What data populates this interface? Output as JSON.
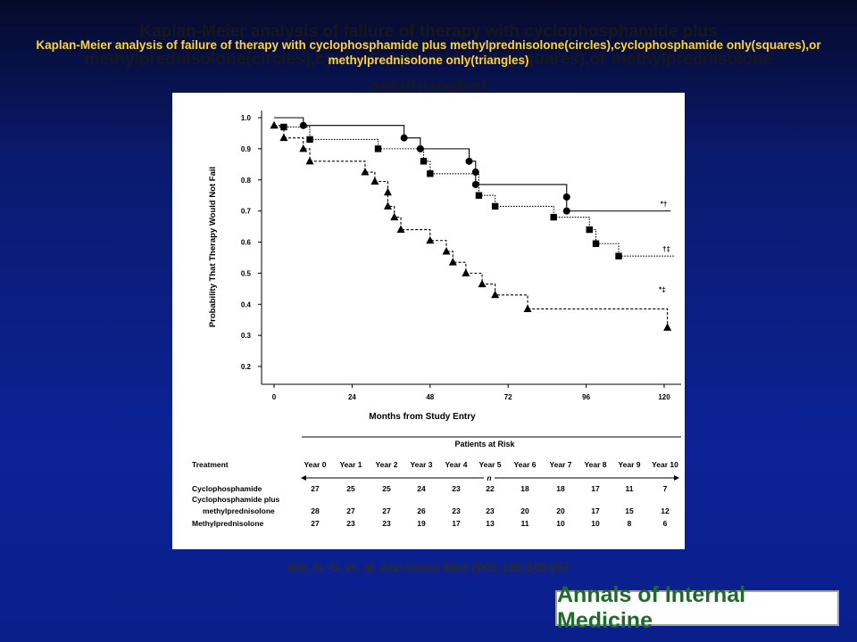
{
  "slide": {
    "title_shadow": "Kaplan-Meier analysis of failure of therapy with cyclophosphamide plus methylprednisolone(circles),cyclophosphamide only(squares),or methylprednisolone only(triangles)",
    "title": "Kaplan-Meier analysis of failure of therapy with cyclophosphamide plus methylprednisolone(circles),cyclophosphamide only(squares),or methylprednisolone only(triangles)",
    "citation": "Illei, G. G. et. al. Ann Intern Med 2001;135:248-257",
    "journal_logo": "Annals of Internal Medicine"
  },
  "colors": {
    "title": "#ffd23a",
    "logo_text": "#1f6b2e",
    "background_top": "#050a2a",
    "background_bottom": "#0a1f8a"
  },
  "chart_data": {
    "type": "line",
    "xlabel": "Months from Study Entry",
    "ylabel": "Probability That Therapy Would Not Fail",
    "xlim": [
      0,
      124
    ],
    "ylim": [
      0.2,
      1.0
    ],
    "x_ticks": [
      0,
      24,
      48,
      72,
      96,
      120
    ],
    "y_ticks": [
      0.2,
      0.3,
      0.4,
      0.5,
      0.6,
      0.7,
      0.8,
      0.9,
      1.0
    ],
    "y_tick_labels": [
      "0.2",
      "0.3",
      "0.4",
      "0.5",
      "0.6",
      "0.7",
      "0.8",
      "0.9",
      "1.0"
    ],
    "grid": false,
    "series": [
      {
        "marker": "circle",
        "line_style": "solid",
        "end_annotation": "*†",
        "steps": [
          [
            0,
            1.0
          ],
          [
            9,
            0.975
          ],
          [
            40,
            0.935
          ],
          [
            45,
            0.9
          ],
          [
            60,
            0.86
          ],
          [
            62,
            0.825
          ],
          [
            62,
            0.785
          ],
          [
            90,
            0.745
          ],
          [
            90,
            0.7
          ]
        ],
        "end_x": 122,
        "markers": [
          [
            9,
            0.975
          ],
          [
            40,
            0.935
          ],
          [
            45,
            0.9
          ],
          [
            60,
            0.86
          ],
          [
            62,
            0.825
          ],
          [
            62,
            0.785
          ],
          [
            90,
            0.745
          ],
          [
            90,
            0.7
          ]
        ]
      },
      {
        "marker": "square",
        "line_style": "dotted",
        "end_annotation": "†‡",
        "steps": [
          [
            0,
            0.97
          ],
          [
            3,
            0.97
          ],
          [
            11,
            0.93
          ],
          [
            32,
            0.9
          ],
          [
            46,
            0.86
          ],
          [
            48,
            0.82
          ],
          [
            63,
            0.75
          ],
          [
            68,
            0.715
          ],
          [
            86,
            0.68
          ],
          [
            97,
            0.64
          ],
          [
            99,
            0.595
          ],
          [
            106,
            0.555
          ]
        ],
        "end_x": 123,
        "markers": [
          [
            3,
            0.97
          ],
          [
            11,
            0.93
          ],
          [
            32,
            0.9
          ],
          [
            46,
            0.86
          ],
          [
            48,
            0.82
          ],
          [
            63,
            0.75
          ],
          [
            68,
            0.715
          ],
          [
            86,
            0.68
          ],
          [
            97,
            0.64
          ],
          [
            99,
            0.595
          ],
          [
            106,
            0.555
          ]
        ]
      },
      {
        "marker": "triangle",
        "line_style": "dashed",
        "end_annotation": "*‡",
        "steps": [
          [
            0,
            0.975
          ],
          [
            3,
            0.935
          ],
          [
            9,
            0.9
          ],
          [
            11,
            0.86
          ],
          [
            28,
            0.825
          ],
          [
            31,
            0.795
          ],
          [
            35,
            0.76
          ],
          [
            35,
            0.715
          ],
          [
            37,
            0.68
          ],
          [
            39,
            0.64
          ],
          [
            48,
            0.605
          ],
          [
            53,
            0.57
          ],
          [
            55,
            0.535
          ],
          [
            59,
            0.5
          ],
          [
            64,
            0.465
          ],
          [
            68,
            0.43
          ],
          [
            78,
            0.385
          ],
          [
            121,
            0.325
          ]
        ],
        "end_x": 121,
        "markers": [
          [
            0,
            0.975
          ],
          [
            3,
            0.935
          ],
          [
            9,
            0.9
          ],
          [
            11,
            0.86
          ],
          [
            28,
            0.825
          ],
          [
            31,
            0.795
          ],
          [
            35,
            0.76
          ],
          [
            35,
            0.715
          ],
          [
            37,
            0.68
          ],
          [
            39,
            0.64
          ],
          [
            48,
            0.605
          ],
          [
            53,
            0.57
          ],
          [
            55,
            0.535
          ],
          [
            59,
            0.5
          ],
          [
            64,
            0.465
          ],
          [
            68,
            0.43
          ],
          [
            78,
            0.385
          ],
          [
            121,
            0.325
          ]
        ]
      }
    ],
    "risk_table": {
      "title": "Patients at Risk",
      "treatment_header": "Treatment",
      "n_label": "n",
      "years": [
        "Year 0",
        "Year 1",
        "Year 2",
        "Year 3",
        "Year 4",
        "Year 5",
        "Year 6",
        "Year 7",
        "Year 8",
        "Year 9",
        "Year 10"
      ],
      "rows": [
        {
          "label_lines": [
            "Cyclophosphamide"
          ],
          "values": [
            "27",
            "25",
            "25",
            "24",
            "23",
            "22",
            "18",
            "18",
            "17",
            "11",
            "7"
          ]
        },
        {
          "label_lines": [
            "Cyclophosphamide plus",
            "methylprednisolone"
          ],
          "values": [
            "28",
            "27",
            "27",
            "26",
            "23",
            "23",
            "20",
            "20",
            "17",
            "15",
            "12"
          ]
        },
        {
          "label_lines": [
            "Methylprednisolone"
          ],
          "values": [
            "27",
            "23",
            "23",
            "19",
            "17",
            "13",
            "11",
            "10",
            "10",
            "8",
            "6"
          ]
        }
      ]
    }
  }
}
